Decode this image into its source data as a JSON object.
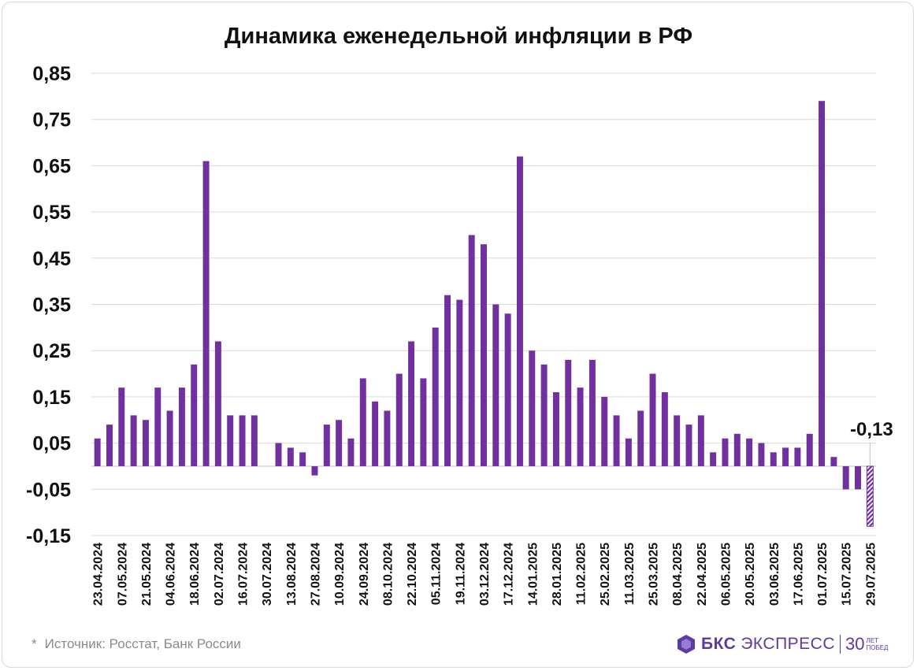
{
  "chart_data": {
    "type": "bar",
    "title": "Динамика еженедельной инфляции в РФ",
    "ylim": [
      -0.15,
      0.85
    ],
    "yticks": [
      "0,85",
      "0,75",
      "0,65",
      "0,55",
      "0,45",
      "0,35",
      "0,25",
      "0,15",
      "0,05",
      "-0,05",
      "-0,15"
    ],
    "ytick_values": [
      0.85,
      0.75,
      0.65,
      0.55,
      0.45,
      0.35,
      0.25,
      0.15,
      0.05,
      -0.05,
      -0.15
    ],
    "grid": true,
    "x_tick_labels": [
      "23.04.2024",
      "07.05.2024",
      "21.05.2024",
      "04.06.2024",
      "18.06.2024",
      "02.07.2024",
      "16.07.2024",
      "30.07.2024",
      "13.08.2024",
      "27.08.2024",
      "10.09.2024",
      "24.09.2024",
      "08.10.2024",
      "22.10.2024",
      "05.11.2024",
      "19.11.2024",
      "03.12.2024",
      "17.12.2024",
      "14.01.2025",
      "28.01.2025",
      "11.02.2025",
      "25.02.2025",
      "11.03.2025",
      "25.03.2025",
      "08.04.2025",
      "22.04.2025",
      "06.05.2025",
      "20.05.2025",
      "03.06.2025",
      "17.06.2025",
      "01.07.2025",
      "15.07.2025",
      "29.07.2025"
    ],
    "values": [
      0.06,
      0.09,
      0.17,
      0.11,
      0.1,
      0.17,
      0.12,
      0.17,
      0.22,
      0.66,
      0.27,
      0.11,
      0.11,
      0.11,
      0.0,
      0.05,
      0.04,
      0.03,
      -0.02,
      0.09,
      0.1,
      0.06,
      0.19,
      0.14,
      0.12,
      0.2,
      0.27,
      0.19,
      0.3,
      0.37,
      0.36,
      0.5,
      0.48,
      0.35,
      0.33,
      0.67,
      0.25,
      0.22,
      0.16,
      0.23,
      0.17,
      0.23,
      0.15,
      0.11,
      0.06,
      0.12,
      0.2,
      0.16,
      0.11,
      0.09,
      0.11,
      0.03,
      0.06,
      0.07,
      0.06,
      0.05,
      0.03,
      0.04,
      0.04,
      0.07,
      0.79,
      0.02,
      -0.05,
      -0.05,
      -0.13
    ],
    "highlighted_last": true,
    "annotation": "-0,13",
    "colors": {
      "bar": "#7030a0",
      "grid": "#d9d9d9",
      "axis": "#bfbfbf"
    }
  },
  "footer": {
    "source_star": "*",
    "source_text": "Источник: Росстат, Банк России",
    "logo_brand": "БКС",
    "logo_brand2": "ЭКСПРЕСС",
    "logo_number": "30",
    "logo_sub1": "ЛЕТ",
    "logo_sub2": "ПОБЕД"
  }
}
